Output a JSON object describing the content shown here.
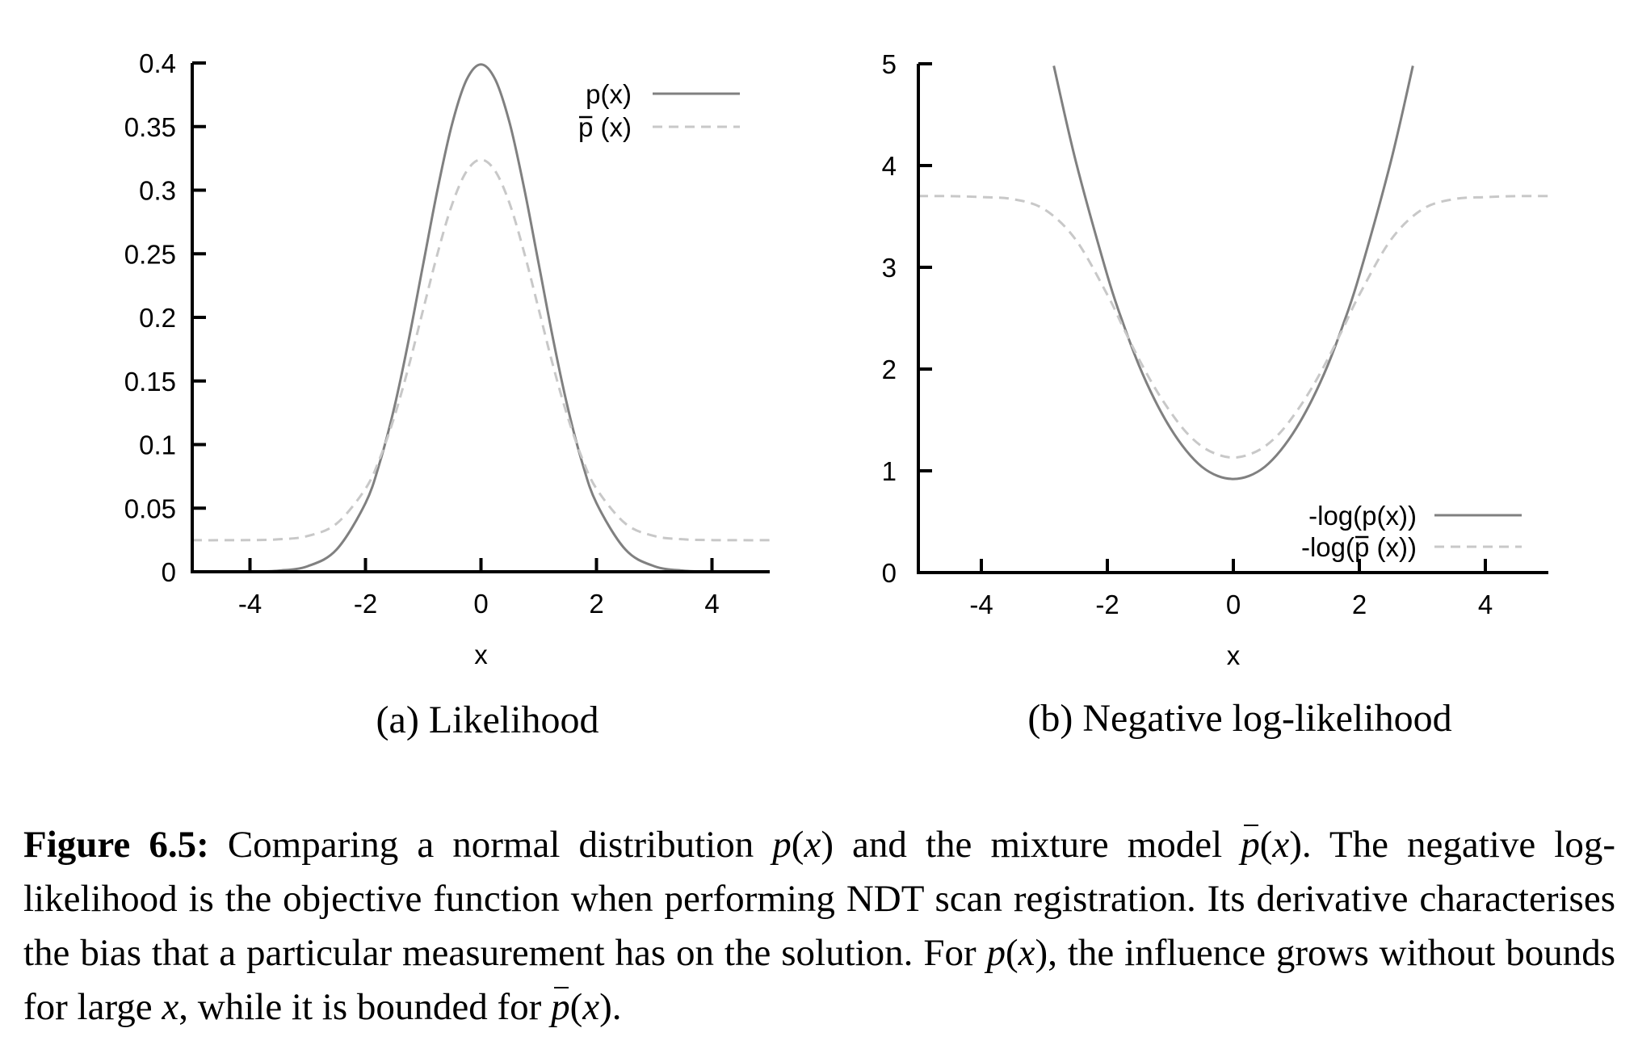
{
  "figure": {
    "caption": {
      "label": "Figure 6.5:",
      "segments": [
        {
          "text": " Comparing a normal distribution ",
          "style": "normal"
        },
        {
          "text": "p",
          "style": "math"
        },
        {
          "text": "(",
          "style": "normal"
        },
        {
          "text": "x",
          "style": "math"
        },
        {
          "text": ") and the mixture model ",
          "style": "normal"
        },
        {
          "text": "p",
          "style": "math-bar"
        },
        {
          "text": "(",
          "style": "normal"
        },
        {
          "text": "x",
          "style": "math"
        },
        {
          "text": "). The negative log-likelihood is the objective function when performing NDT scan registration. Its derivative characterises the bias that a particular measurement has on the solution. For ",
          "style": "normal"
        },
        {
          "text": "p",
          "style": "math"
        },
        {
          "text": "(",
          "style": "normal"
        },
        {
          "text": "x",
          "style": "math"
        },
        {
          "text": "), the influence grows without bounds for large ",
          "style": "normal"
        },
        {
          "text": "x",
          "style": "math"
        },
        {
          "text": ", while it is bounded for ",
          "style": "normal"
        },
        {
          "text": "p",
          "style": "math-bar"
        },
        {
          "text": "(",
          "style": "normal"
        },
        {
          "text": "x",
          "style": "math"
        },
        {
          "text": ").",
          "style": "normal"
        }
      ]
    }
  },
  "colors": {
    "solid": "#808080",
    "dashed": "#c8c8c8",
    "axis": "#000000"
  },
  "chart_data": [
    {
      "type": "line",
      "subcaption": "(a) Likelihood",
      "title": "",
      "xlabel": "x",
      "ylabel": "",
      "xlim": [
        -5,
        5
      ],
      "ylim": [
        0,
        0.4
      ],
      "xticks": [
        -4,
        -2,
        0,
        2,
        4
      ],
      "xtick_labels": [
        "-4",
        "-2",
        "0",
        "2",
        "4"
      ],
      "yticks": [
        0,
        0.05,
        0.1,
        0.15,
        0.2,
        0.25,
        0.3,
        0.35,
        0.4
      ],
      "ytick_labels": [
        "0",
        "0.05",
        "0.1",
        "0.15",
        "0.2",
        "0.25",
        "0.3",
        "0.35",
        "0.4"
      ],
      "grid": false,
      "legend_position": "top-right",
      "series": [
        {
          "name": "p(x)",
          "legend_text": "p(x)",
          "style": "solid",
          "x": [
            -5,
            -4.5,
            -4,
            -3.5,
            -3,
            -2.5,
            -2,
            -1.75,
            -1.5,
            -1.25,
            -1,
            -0.75,
            -0.5,
            -0.25,
            0,
            0.25,
            0.5,
            0.75,
            1,
            1.25,
            1.5,
            1.75,
            2,
            2.5,
            3,
            3.5,
            4,
            4.5,
            5
          ],
          "y": [
            0.0,
            0.0,
            0.0001,
            0.0009,
            0.0044,
            0.0175,
            0.054,
            0.0863,
            0.1295,
            0.1826,
            0.242,
            0.3011,
            0.3521,
            0.3867,
            0.3989,
            0.3867,
            0.3521,
            0.3011,
            0.242,
            0.1826,
            0.1295,
            0.0863,
            0.054,
            0.0175,
            0.0044,
            0.0009,
            0.0001,
            0.0,
            0.0
          ]
        },
        {
          "name": "p̄(x)",
          "legend_text": "p (x)",
          "legend_bar": true,
          "style": "dashed",
          "x": [
            -5,
            -4.5,
            -4,
            -3.5,
            -3,
            -2.5,
            -2,
            -1.75,
            -1.5,
            -1.25,
            -1,
            -0.75,
            -0.5,
            -0.25,
            0,
            0.25,
            0.5,
            0.75,
            1,
            1.25,
            1.5,
            1.75,
            2,
            2.5,
            3,
            3.5,
            4,
            4.5,
            5
          ],
          "y": [
            0.0248,
            0.0248,
            0.0249,
            0.0255,
            0.0281,
            0.0379,
            0.0653,
            0.0894,
            0.1219,
            0.1617,
            0.2063,
            0.2506,
            0.2889,
            0.3148,
            0.324,
            0.3148,
            0.2889,
            0.2506,
            0.2063,
            0.1617,
            0.1219,
            0.0894,
            0.0653,
            0.0379,
            0.0281,
            0.0255,
            0.0249,
            0.0248,
            0.0248
          ]
        }
      ]
    },
    {
      "type": "line",
      "subcaption": "(b) Negative log-likelihood",
      "title": "",
      "xlabel": "x",
      "ylabel": "",
      "xlim": [
        -5,
        5
      ],
      "ylim": [
        0,
        5
      ],
      "xticks": [
        -4,
        -2,
        0,
        2,
        4
      ],
      "xtick_labels": [
        "-4",
        "-2",
        "0",
        "2",
        "4"
      ],
      "yticks": [
        0,
        1,
        2,
        3,
        4,
        5
      ],
      "ytick_labels": [
        "0",
        "1",
        "2",
        "3",
        "4",
        "5"
      ],
      "grid": false,
      "legend_position": "bottom-right",
      "series": [
        {
          "name": "-log(p(x))",
          "legend_text": "-log(p(x))",
          "style": "solid",
          "x": [
            -2.85,
            -2.5,
            -2,
            -1.75,
            -1.5,
            -1.25,
            -1,
            -0.75,
            -0.5,
            -0.25,
            0,
            0.25,
            0.5,
            0.75,
            1,
            1.25,
            1.5,
            1.75,
            2,
            2.5,
            2.85
          ],
          "y": [
            4.98,
            4.04,
            2.92,
            2.45,
            2.04,
            1.7,
            1.42,
            1.2,
            1.04,
            0.95,
            0.92,
            0.95,
            1.04,
            1.2,
            1.42,
            1.7,
            2.04,
            2.45,
            2.92,
            4.04,
            4.98
          ]
        },
        {
          "name": "-log(p̄(x))",
          "legend_text": "-log(p (x))",
          "legend_bar": true,
          "style": "dashed",
          "x": [
            -5,
            -4.5,
            -4,
            -3.5,
            -3,
            -2.5,
            -2,
            -1.75,
            -1.5,
            -1.25,
            -1,
            -0.75,
            -0.5,
            -0.25,
            0,
            0.25,
            0.5,
            0.75,
            1,
            1.25,
            1.5,
            1.75,
            2,
            2.5,
            3,
            3.5,
            4,
            4.5,
            5
          ],
          "y": [
            3.7,
            3.7,
            3.69,
            3.67,
            3.57,
            3.27,
            2.73,
            2.41,
            2.1,
            1.82,
            1.58,
            1.38,
            1.24,
            1.16,
            1.13,
            1.16,
            1.24,
            1.38,
            1.58,
            1.82,
            2.1,
            2.41,
            2.73,
            3.27,
            3.57,
            3.67,
            3.69,
            3.7,
            3.7
          ]
        }
      ]
    }
  ]
}
